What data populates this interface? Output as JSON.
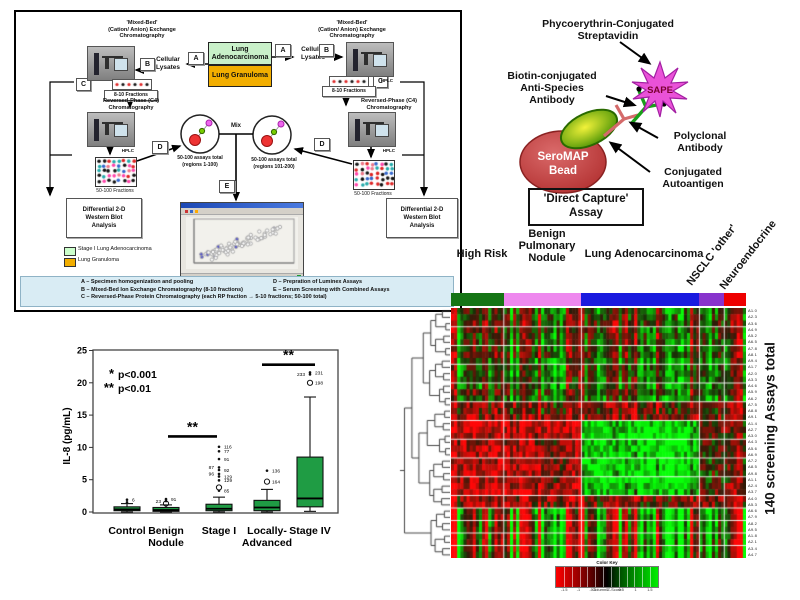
{
  "workflow": {
    "mixed_bed_label": [
      "'Mixed-Bed'",
      "(Cation/ Anion) Exchange",
      "Chromatography"
    ],
    "hplc": "HPLC",
    "samples": [
      {
        "label": "Lung Adenocarcinoma",
        "color": "#c9f0c9"
      },
      {
        "label": "Lung Granuloma",
        "color": "#f2ae00"
      }
    ],
    "cellular_lysates": [
      "Cellular",
      "Lysates"
    ],
    "steps": {
      "A": "A",
      "B": "B",
      "C": "C",
      "D": "D",
      "E": "E"
    },
    "fractions_8_10": "8-10 Fractions",
    "reversed_phase_label": [
      "Reversed-Phase (C4)",
      "Chromatography"
    ],
    "fractions_50_100": "50-100 Fractions",
    "assays_left": [
      "50-100 assays total",
      "(regions 1-100)"
    ],
    "assays_right": [
      "50-100 assays total",
      "(regions 101-200)"
    ],
    "mix": "Mix",
    "western": [
      "Differential 2-D",
      "Western Blot",
      "Analysis"
    ],
    "legend": [
      {
        "label": "Stage I Lung Adenocarcinoma",
        "color": "#ccffcc"
      },
      {
        "label": "Lung Granuloma",
        "color": "#f2ae00"
      }
    ],
    "caption_bg": "#d9ecf4",
    "captions_left": [
      "A – Specimen homogenization and pooling",
      "B – Mixed-Bed Ion Exchange Chromatography (8-10 fractions)",
      "C – Reversed-Phase Protein Chromatography (each RP fraction → 5-10 fractions; 50-100 total)"
    ],
    "captions_right": [
      "D – Prepration of Luminex Assays",
      "E – Serum Screening with Combined Assays"
    ]
  },
  "assay": {
    "streptavidin": [
      "Phycoerythrin-Conjugated",
      "Streptavidin"
    ],
    "biotin": [
      "Biotin-conjugated",
      "Anti-Species",
      "Antibody"
    ],
    "polyclonal": [
      "Polyclonal",
      "Antibody"
    ],
    "autoantigen": [
      "Conjugated",
      "Autoantigen"
    ],
    "bead_line1": "SeroMAP",
    "bead_line2": "Bead",
    "sape": "SAPE",
    "title": [
      "'Direct Capture'",
      "Assay"
    ],
    "colors": {
      "bead": "#c64444",
      "bead_edge": "#8a2222",
      "sape": "#ea52d8",
      "sape_edge": "#a21fa2",
      "green_antibody": "#1a9e1a",
      "pink_antibody": "#e08080",
      "autoantigen_center": "#f2f23a",
      "autoantigen_edge": "#3a8a00"
    }
  },
  "chart_data": [
    {
      "type": "box",
      "ylabel": "IL-8 (pg/mL)",
      "yticks": [
        0,
        5,
        10,
        15,
        20,
        25
      ],
      "ylim": [
        0,
        26
      ],
      "box_color": "#1f9c44",
      "legend": [
        {
          "symbol": "*",
          "text": "p<0.001"
        },
        {
          "symbol": "**",
          "text": "p<0.01"
        }
      ],
      "categories": [
        [
          "Control"
        ],
        [
          "Benign",
          "Nodule"
        ],
        [
          "Stage I"
        ],
        [
          "Locally-",
          "Advanced"
        ],
        [
          "Stage IV"
        ]
      ],
      "boxes": [
        {
          "q1": 0.2,
          "median": 0.4,
          "q3": 0.8,
          "lo": 0.0,
          "hi": 1.3,
          "outliers": [
            {
              "v": 1.5,
              "label": "",
              "shape": "dot",
              "side": "right"
            },
            {
              "v": 1.9,
              "label": "6",
              "shape": "dot",
              "side": "right"
            }
          ]
        },
        {
          "q1": 0.1,
          "median": 0.3,
          "q3": 0.7,
          "lo": 0.0,
          "hi": 1.1,
          "outliers": [
            {
              "v": 1.3,
              "label": "",
              "shape": "circle",
              "side": "right"
            },
            {
              "v": 1.7,
              "label": "23",
              "shape": "dot",
              "side": "left"
            },
            {
              "v": 2.0,
              "label": "91",
              "shape": "dot",
              "side": "right"
            }
          ]
        },
        {
          "q1": 0.2,
          "median": 0.5,
          "q3": 1.2,
          "lo": 0.0,
          "hi": 2.3,
          "outliers": [
            {
              "v": 3.3,
              "label": "85",
              "shape": "dot",
              "side": "right"
            },
            {
              "v": 3.8,
              "label": "",
              "shape": "circle",
              "side": "right"
            },
            {
              "v": 4.9,
              "label": "129",
              "shape": "dot",
              "side": "right"
            },
            {
              "v": 5.5,
              "label": "129",
              "shape": "dot",
              "side": "right"
            },
            {
              "v": 5.9,
              "label": "96",
              "shape": "dot",
              "side": "left"
            },
            {
              "v": 6.5,
              "label": "92",
              "shape": "dot",
              "side": "right"
            },
            {
              "v": 6.9,
              "label": "87",
              "shape": "dot",
              "side": "left"
            },
            {
              "v": 8.2,
              "label": "91",
              "shape": "dot",
              "side": "right"
            },
            {
              "v": 9.4,
              "label": "77",
              "shape": "dot",
              "side": "right"
            },
            {
              "v": 10.1,
              "label": "116",
              "shape": "dot",
              "side": "right"
            }
          ]
        },
        {
          "q1": 0.2,
          "median": 0.7,
          "q3": 1.8,
          "lo": 0.0,
          "hi": 3.5,
          "outliers": [
            {
              "v": 4.7,
              "label": "164",
              "shape": "circle",
              "side": "right"
            },
            {
              "v": 6.4,
              "label": "136",
              "shape": "dot",
              "side": "right"
            }
          ]
        },
        {
          "q1": 0.8,
          "median": 2.1,
          "q3": 8.5,
          "lo": 0.1,
          "hi": 17.8,
          "outliers": [
            {
              "v": 20.0,
              "label": "198",
              "shape": "circle",
              "side": "right"
            },
            {
              "v": 21.3,
              "label": "233",
              "shape": "dot",
              "side": "left"
            },
            {
              "v": 21.6,
              "label": "231",
              "shape": "dot",
              "side": "right"
            }
          ]
        }
      ],
      "sig_bars": [
        {
          "from": 1,
          "to": 2,
          "y": 11.7,
          "label": "**",
          "pad": 2
        },
        {
          "from": 3,
          "to": 4,
          "y": 22.8,
          "label": "**",
          "pad": -5
        }
      ]
    },
    {
      "type": "heatmap",
      "rows": 40,
      "right_label": "140 screening Assays total",
      "col_groups": [
        {
          "label": "High Risk",
          "color": "#157515",
          "cols": 17
        },
        {
          "label": "Benign Pulmonary Nodule",
          "color": "#ee88ee",
          "cols": 25
        },
        {
          "label": "Lung Adenocarcinoma",
          "color": "#1a1adf",
          "cols": 38
        },
        {
          "label": "NSCLC 'other'",
          "color": "#8833cc",
          "cols": 8
        },
        {
          "label": "Neuroendocrine",
          "color": "#ee0000",
          "cols": 7
        }
      ],
      "row_label_pattern": "A#.#",
      "seed": 7,
      "separator_rows": [
        2,
        5,
        8,
        11,
        14,
        17,
        20,
        23,
        26,
        29,
        31,
        33,
        35,
        37
      ],
      "bands": [
        {
          "rows": [
            0,
            7
          ],
          "bias": [
            -0.15,
            -0.05,
            -0.15,
            -0.1,
            -0.15
          ],
          "stripe": 0.55
        },
        {
          "rows": [
            8,
            14
          ],
          "bias": [
            0.1,
            0.2,
            0.15,
            0.0,
            -0.05
          ],
          "stripe": 0.5
        },
        {
          "rows": [
            15,
            17
          ],
          "bias": [
            -0.45,
            -0.4,
            -0.45,
            -0.35,
            -0.4
          ],
          "stripe": 0.3
        },
        {
          "rows": [
            18,
            29
          ],
          "bias": [
            -0.8,
            -0.7,
            0.85,
            -0.25,
            -0.35
          ],
          "stripe": 0.18
        },
        {
          "rows": [
            30,
            31
          ],
          "bias": [
            -0.75,
            -0.7,
            -0.55,
            -0.65,
            -0.7
          ],
          "stripe": 0.25
        },
        {
          "rows": [
            32,
            39
          ],
          "bias": [
            0.05,
            0.05,
            0.05,
            0.0,
            0.0
          ],
          "stripe": 1.0
        }
      ],
      "color_key": {
        "title": "Color Key",
        "ticks": [
          "-1.5",
          "-1",
          "-0.5",
          "0",
          "0.5",
          "1",
          "1.5"
        ],
        "label": "Column Z-Score",
        "neg_color": "#ff0000",
        "mid_color": "#000000",
        "pos_color": "#00ee00"
      }
    }
  ]
}
